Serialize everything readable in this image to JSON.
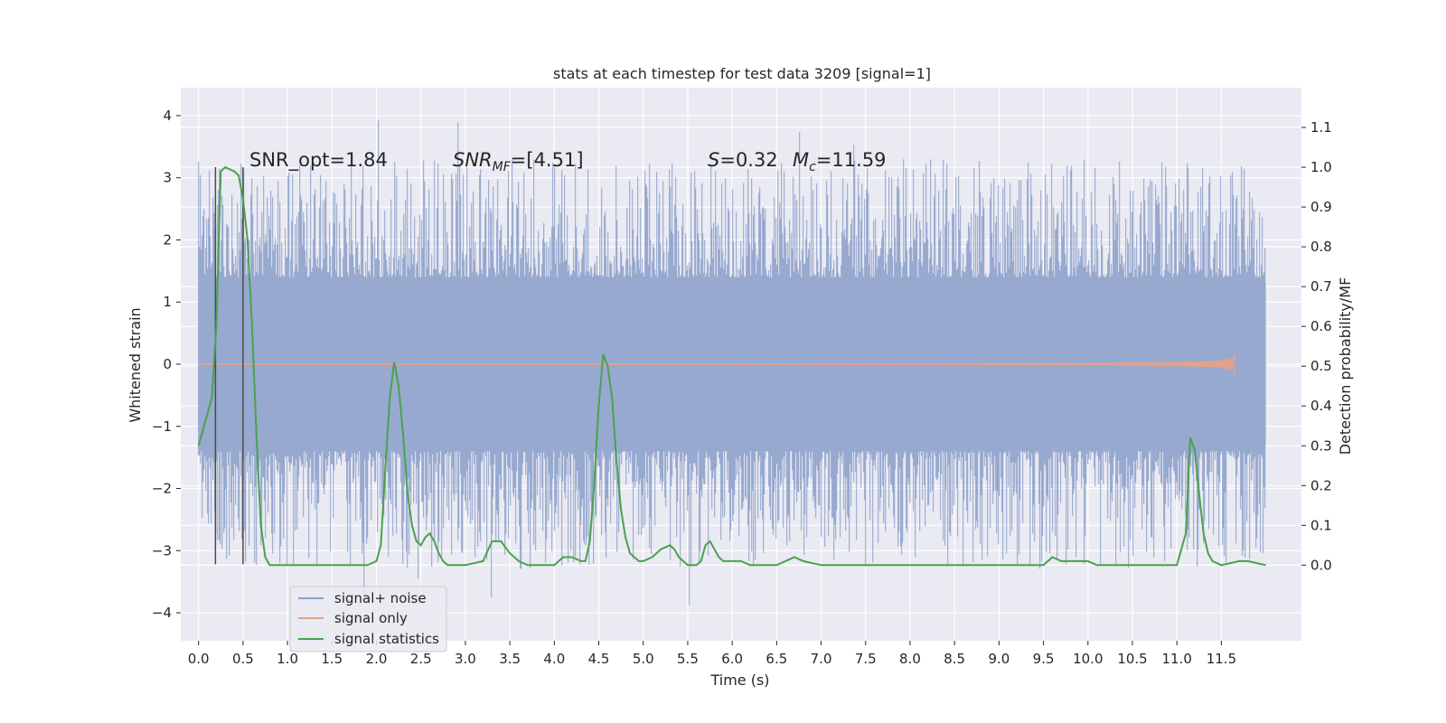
{
  "chart_data": {
    "type": "line",
    "title": "stats at each timestep for test data 3209 [signal=1]",
    "xlabel": "Time (s)",
    "ylabel": "Whitened strain",
    "y2label": "Detection probability/MF",
    "xlim": [
      -0.2,
      12.4
    ],
    "ylim": [
      -4.45,
      4.45
    ],
    "y2lim": [
      -0.19,
      1.2
    ],
    "x_ticks": [
      "0.0",
      "0.5",
      "1.0",
      "1.5",
      "2.0",
      "2.5",
      "3.0",
      "3.5",
      "4.0",
      "4.5",
      "5.0",
      "5.5",
      "6.0",
      "6.5",
      "7.0",
      "7.5",
      "8.0",
      "8.5",
      "9.0",
      "9.5",
      "10.0",
      "10.5",
      "11.0",
      "11.5"
    ],
    "y_ticks": [
      "−4",
      "−3",
      "−2",
      "−1",
      "0",
      "1",
      "2",
      "3",
      "4"
    ],
    "y2_ticks": [
      "0.0",
      "0.1",
      "0.2",
      "0.3",
      "0.4",
      "0.5",
      "0.6",
      "0.7",
      "0.8",
      "0.9",
      "1.0",
      "1.1"
    ],
    "grid": true,
    "legend_position": "lower-left",
    "annotations": {
      "snr_opt": "SNR_opt=1.84",
      "snr_mf_main": "SNR",
      "snr_mf_sub": "MF",
      "snr_mf_rest": "=[4.51]",
      "s_main": "S",
      "s_rest": "=0.32",
      "mc_main": "M",
      "mc_sub": "c",
      "mc_rest": "=11.59"
    },
    "vertical_markers_x": [
      0.19,
      0.5
    ],
    "noise_range": {
      "x_start": 0.0,
      "x_end": 12.0,
      "core_amplitude": 1.3,
      "peak_range": [
        -4.05,
        4.05
      ]
    },
    "series": [
      {
        "name": "signal+ noise",
        "color": "#8da0cb",
        "axis": "left",
        "x_start": 0.0,
        "x_end": 12.0
      },
      {
        "name": "signal only",
        "color": "#e5a18a",
        "axis": "left",
        "chirp_end_time": 11.65,
        "chirp_end_amplitude": 0.25
      },
      {
        "name": "signal statistics",
        "color": "#4aa14d",
        "axis": "right",
        "x": [
          0.0,
          0.15,
          0.2,
          0.25,
          0.3,
          0.4,
          0.45,
          0.5,
          0.55,
          0.6,
          0.65,
          0.7,
          0.75,
          0.8,
          1.0,
          1.5,
          1.9,
          2.0,
          2.05,
          2.1,
          2.15,
          2.2,
          2.25,
          2.3,
          2.35,
          2.4,
          2.45,
          2.5,
          2.55,
          2.6,
          2.65,
          2.7,
          2.75,
          2.8,
          3.0,
          3.2,
          3.3,
          3.4,
          3.5,
          3.6,
          3.7,
          4.0,
          4.1,
          4.2,
          4.3,
          4.35,
          4.4,
          4.45,
          4.5,
          4.55,
          4.6,
          4.65,
          4.7,
          4.75,
          4.8,
          4.85,
          4.9,
          4.95,
          5.0,
          5.1,
          5.2,
          5.3,
          5.35,
          5.4,
          5.5,
          5.6,
          5.65,
          5.7,
          5.75,
          5.8,
          5.85,
          5.9,
          6.0,
          6.1,
          6.2,
          6.5,
          6.7,
          6.8,
          7.0,
          7.5,
          8.0,
          9.0,
          9.5,
          9.6,
          9.7,
          9.8,
          10.0,
          10.1,
          10.2,
          11.0,
          11.1,
          11.15,
          11.2,
          11.25,
          11.3,
          11.35,
          11.4,
          11.5,
          11.7,
          11.8,
          11.9,
          12.0
        ],
        "values": [
          0.3,
          0.42,
          0.6,
          0.99,
          1.0,
          0.99,
          0.98,
          0.92,
          0.82,
          0.61,
          0.33,
          0.1,
          0.02,
          0.0,
          0.0,
          0.0,
          0.0,
          0.01,
          0.05,
          0.24,
          0.42,
          0.51,
          0.45,
          0.33,
          0.18,
          0.1,
          0.06,
          0.05,
          0.07,
          0.08,
          0.06,
          0.03,
          0.01,
          0.0,
          0.0,
          0.01,
          0.06,
          0.06,
          0.03,
          0.01,
          0.0,
          0.0,
          0.02,
          0.02,
          0.01,
          0.01,
          0.06,
          0.21,
          0.4,
          0.53,
          0.5,
          0.42,
          0.26,
          0.14,
          0.07,
          0.03,
          0.02,
          0.01,
          0.01,
          0.02,
          0.04,
          0.05,
          0.04,
          0.02,
          0.0,
          0.0,
          0.01,
          0.05,
          0.06,
          0.04,
          0.02,
          0.01,
          0.01,
          0.01,
          0.0,
          0.0,
          0.02,
          0.01,
          0.0,
          0.0,
          0.0,
          0.0,
          0.0,
          0.02,
          0.01,
          0.01,
          0.01,
          0.0,
          0.0,
          0.0,
          0.08,
          0.32,
          0.29,
          0.18,
          0.08,
          0.03,
          0.01,
          0.0,
          0.01,
          0.01,
          0.005,
          0.0
        ]
      }
    ]
  }
}
